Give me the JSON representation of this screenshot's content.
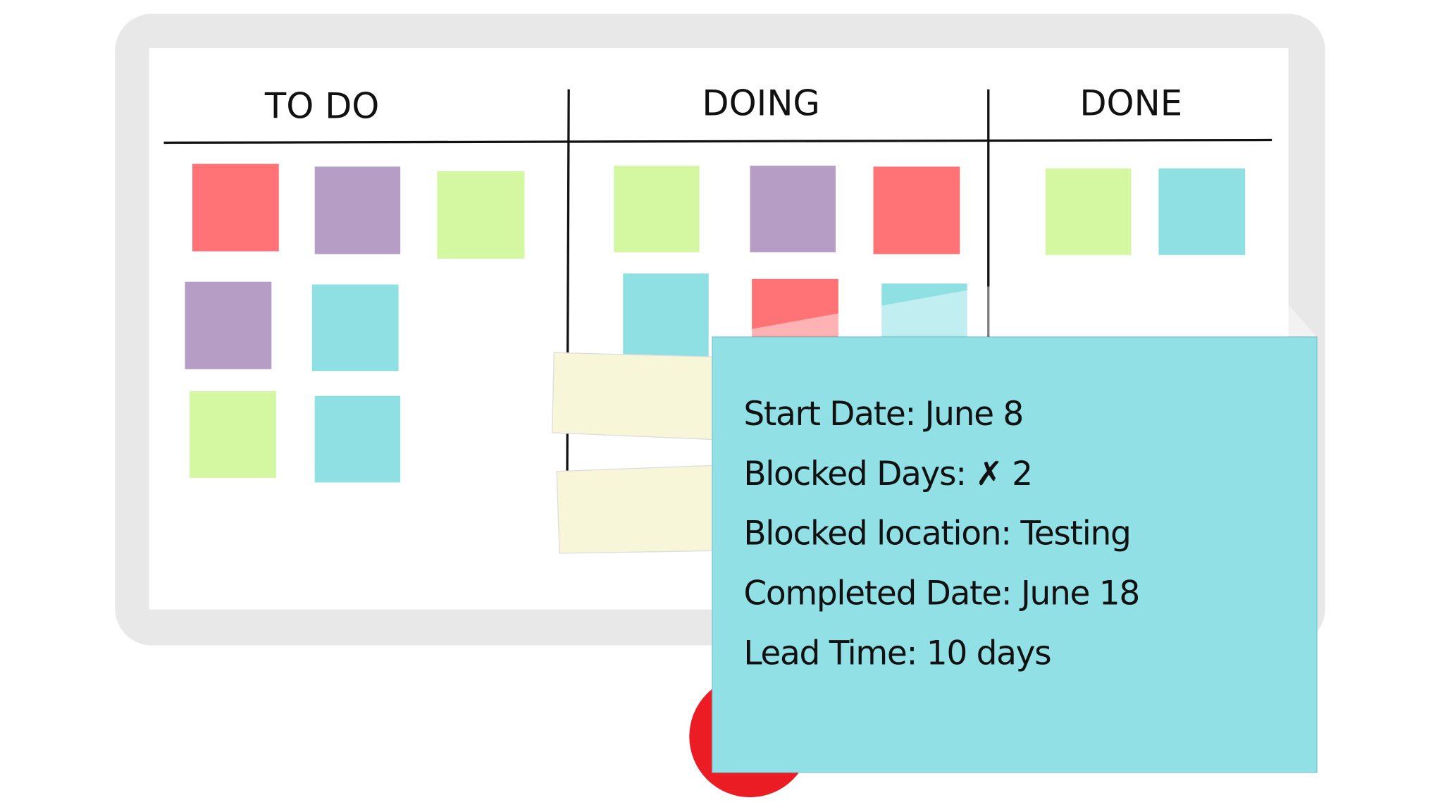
{
  "board": {
    "columns": [
      "TO DO",
      "DOING",
      "DONE"
    ]
  },
  "card": {
    "lines": [
      "Start Date: June 8",
      "Blocked Days: ✗ 2",
      "Blocked location: Testing",
      "Completed Date: June 18",
      "Lead Time: 10 days"
    ]
  }
}
